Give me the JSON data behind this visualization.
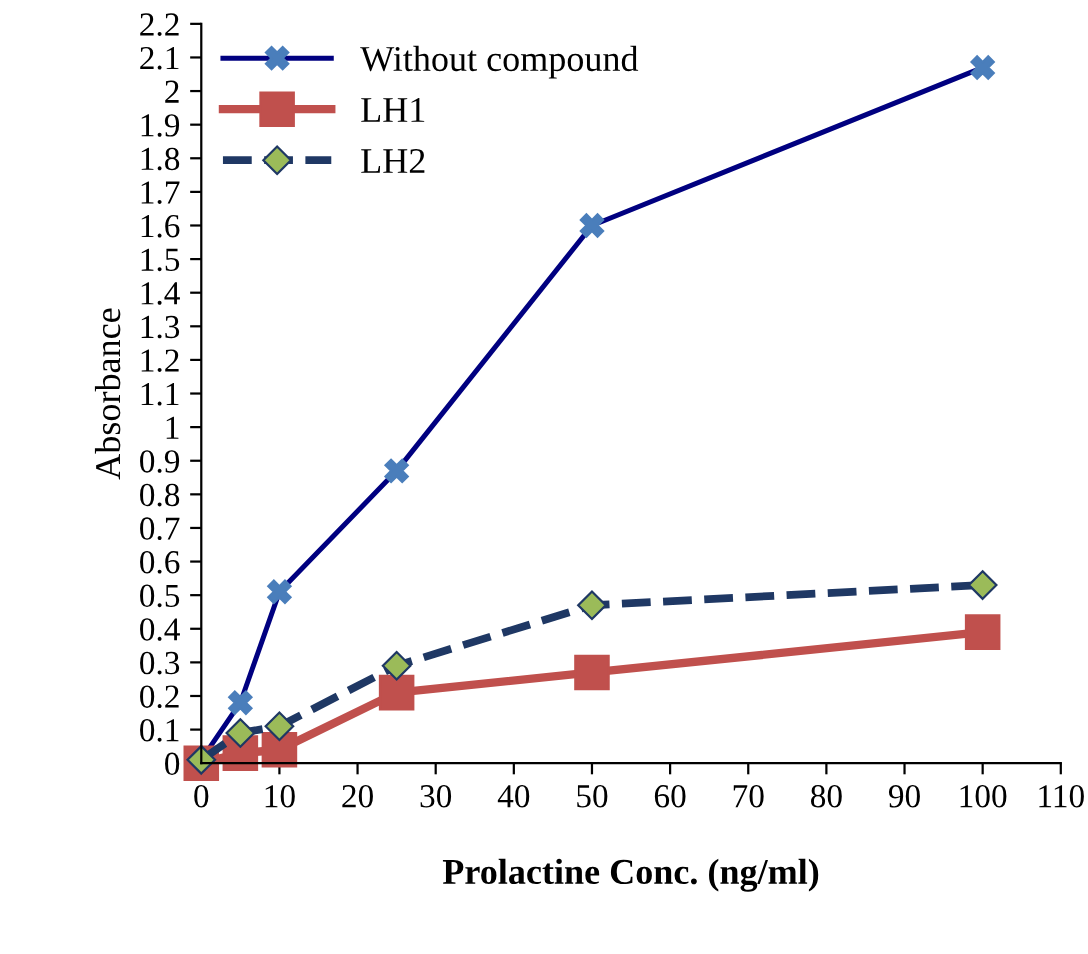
{
  "chart_data": {
    "type": "line",
    "xlabel": "Prolactine Conc. (ng/ml)",
    "ylabel": "Absorbance",
    "x": [
      0,
      5,
      10,
      25,
      50,
      100
    ],
    "series": [
      {
        "name": "Without compound",
        "color": "#000080",
        "marker": "cross",
        "line_style": "solid",
        "values": [
          0.01,
          0.18,
          0.51,
          0.87,
          1.6,
          2.07
        ]
      },
      {
        "name": "LH1",
        "color": "#c0504d",
        "marker": "square",
        "line_style": "solid",
        "values": [
          0.0,
          0.03,
          0.04,
          0.21,
          0.27,
          0.39
        ]
      },
      {
        "name": "LH2",
        "color": "#1f3864",
        "marker": "diamond",
        "line_style": "dashed",
        "values": [
          0.01,
          0.09,
          0.11,
          0.29,
          0.47,
          0.53
        ]
      }
    ],
    "xlim": [
      0,
      110
    ],
    "xticks": [
      0,
      10,
      20,
      30,
      40,
      50,
      60,
      70,
      80,
      90,
      100,
      110
    ],
    "ylim": [
      0,
      2.2
    ],
    "yticks": [
      0,
      0.1,
      0.2,
      0.3,
      0.4,
      0.5,
      0.6,
      0.7,
      0.8,
      0.9,
      1,
      1.1,
      1.2,
      1.3,
      1.4,
      1.5,
      1.6,
      1.7,
      1.8,
      1.9,
      2,
      2.1,
      2.2
    ],
    "grid": false,
    "legend": "top left"
  }
}
